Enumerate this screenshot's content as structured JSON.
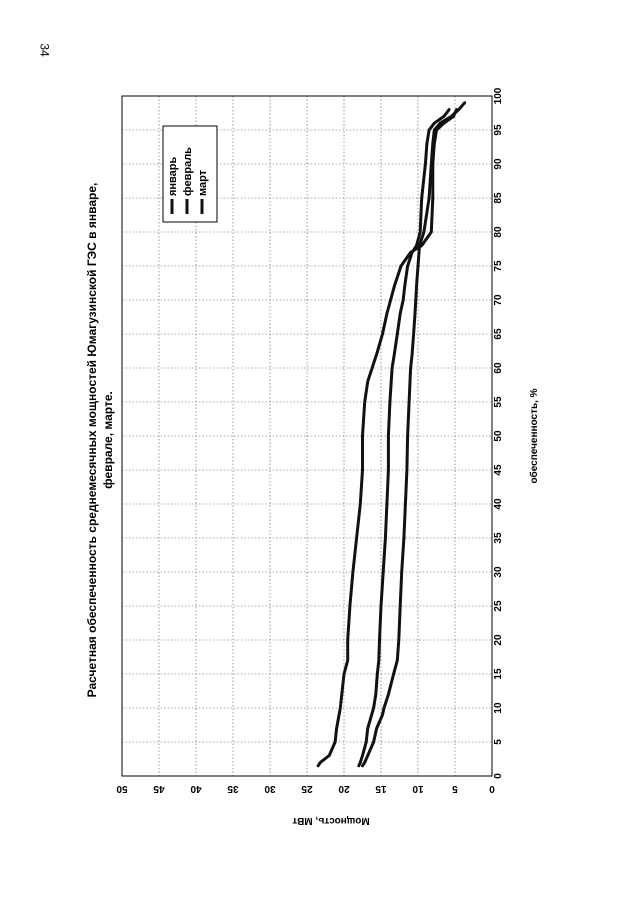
{
  "page_number": "34",
  "chart_data": {
    "type": "line",
    "title_line1": "Расчетная обеспеченность среднемесячных мощностей Юмагузинской ГЭС в январе,",
    "title_line2": "феврале, марте.",
    "xlabel": "обеспеченность, %",
    "ylabel": "Мощность, МВт",
    "xlim": [
      0,
      100
    ],
    "ylim": [
      0,
      50
    ],
    "x_ticks": [
      0,
      5,
      10,
      15,
      20,
      25,
      30,
      35,
      40,
      45,
      50,
      55,
      60,
      65,
      70,
      75,
      80,
      85,
      90,
      95,
      100
    ],
    "y_ticks": [
      0,
      5,
      10,
      15,
      20,
      25,
      30,
      35,
      40,
      45,
      50
    ],
    "grid": true,
    "orientation": "rotated-90-clockwise",
    "legend_position": "top-right",
    "series": [
      {
        "name": "январь",
        "x": [
          1.5,
          2,
          3,
          5,
          7,
          10,
          12,
          15,
          17,
          20,
          25,
          30,
          35,
          40,
          45,
          50,
          55,
          58,
          60,
          62,
          65,
          68,
          70,
          72,
          75,
          77,
          78,
          80,
          85,
          90,
          93,
          95,
          96,
          97,
          98
        ],
        "y": [
          23.5,
          23.2,
          22,
          21.2,
          21,
          20.5,
          20.3,
          20,
          19.5,
          19.5,
          19.2,
          18.8,
          18.3,
          17.8,
          17.5,
          17.5,
          17.2,
          16.8,
          16.2,
          15.6,
          14.8,
          14.2,
          13.7,
          13.2,
          12.3,
          11,
          9.5,
          8.2,
          8,
          8,
          7.8,
          7.5,
          6.5,
          5.2,
          4.8
        ]
      },
      {
        "name": "февраль",
        "x": [
          1.5,
          2,
          3,
          5,
          7,
          10,
          12,
          15,
          17,
          20,
          25,
          30,
          35,
          40,
          45,
          50,
          55,
          60,
          62,
          65,
          68,
          70,
          72,
          75,
          77,
          78,
          80,
          85,
          90,
          93,
          95,
          96,
          97,
          98
        ],
        "y": [
          18,
          17.8,
          17.5,
          17,
          16.8,
          16,
          15.7,
          15.5,
          15.3,
          15.2,
          15,
          14.7,
          14.4,
          14.2,
          14,
          14,
          13.8,
          13.5,
          13.2,
          12.8,
          12.4,
          12,
          11.8,
          11.4,
          10.8,
          10.2,
          9.7,
          9.5,
          9,
          8.8,
          8.5,
          7.8,
          6.5,
          5.8
        ]
      },
      {
        "name": "март",
        "x": [
          1.5,
          2,
          3,
          5,
          7,
          9,
          10,
          12,
          15,
          17,
          20,
          25,
          30,
          35,
          40,
          45,
          50,
          55,
          60,
          62,
          65,
          68,
          70,
          72,
          75,
          78,
          80,
          85,
          90,
          93,
          95,
          96,
          97,
          98,
          99
        ],
        "y": [
          17.5,
          17.2,
          16.8,
          16,
          15.6,
          14.8,
          14.6,
          14,
          13.3,
          12.8,
          12.6,
          12.4,
          12.2,
          11.9,
          11.7,
          11.5,
          11.4,
          11.2,
          11,
          10.8,
          10.6,
          10.4,
          10.3,
          10.2,
          10,
          9.8,
          9.2,
          8.5,
          8.2,
          8,
          7.8,
          7,
          5.5,
          4.5,
          3.7
        ]
      }
    ]
  }
}
